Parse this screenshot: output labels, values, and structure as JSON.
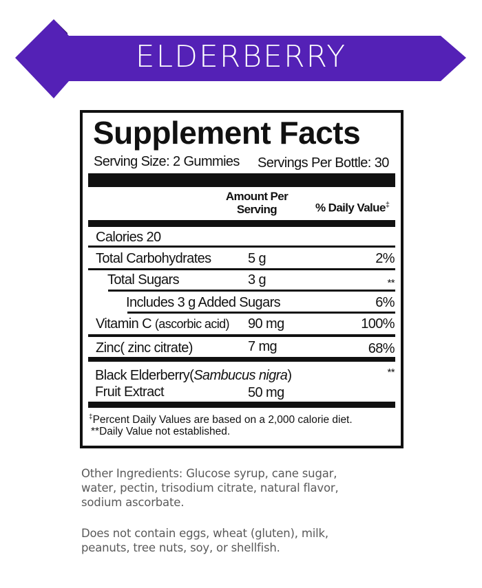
{
  "banner": {
    "title": "ELDERBERRY",
    "color": "#5421b6",
    "shadow_color": "#2e0f6e"
  },
  "facts": {
    "title": "Supplement Facts",
    "serving_size": "Serving Size: 2 Gummies",
    "servings_per": "Servings Per Bottle: 30",
    "col_amount_1": "Amount Per",
    "col_amount_2": "Serving",
    "col_dv": "% Daily Value",
    "dv_mark": "‡",
    "calories": "Calories 20",
    "rows": [
      {
        "name": "Total Carbohydrates",
        "amount": "5 g",
        "dv": "2%"
      },
      {
        "name": "Total Sugars",
        "amount": "3 g",
        "dv": "**"
      },
      {
        "name": "Includes 3 g Added Sugars",
        "amount": "",
        "dv": "6%"
      },
      {
        "name": "Vitamin C",
        "source": "(ascorbic acid)",
        "amount": "90 mg",
        "dv": "100%"
      },
      {
        "name": "Zinc",
        "source": "( zinc citrate)",
        "amount": "7 mg",
        "dv": "68%"
      }
    ],
    "elderberry": {
      "name": "Black Elderberry",
      "latin_open": "(",
      "latin": "Sambucus nigra",
      "latin_close": ")",
      "line2": "Fruit Extract",
      "amount": "50 mg",
      "dv": "**"
    },
    "footnote_mark": "‡",
    "footnote1": "Percent Daily Values are based on a 2,000 calorie diet.",
    "footnote2": "**Daily Value not established."
  },
  "other_ingredients": {
    "lines": [
      "Other Ingredients: Glucose syrup, cane sugar,",
      "water, pectin, trisodium citrate, natural flavor,",
      "sodium ascorbate."
    ]
  },
  "allergens": {
    "lines": [
      "Does not contain eggs, wheat (gluten), milk,",
      "peanuts, tree nuts, soy, or shellfish."
    ]
  }
}
